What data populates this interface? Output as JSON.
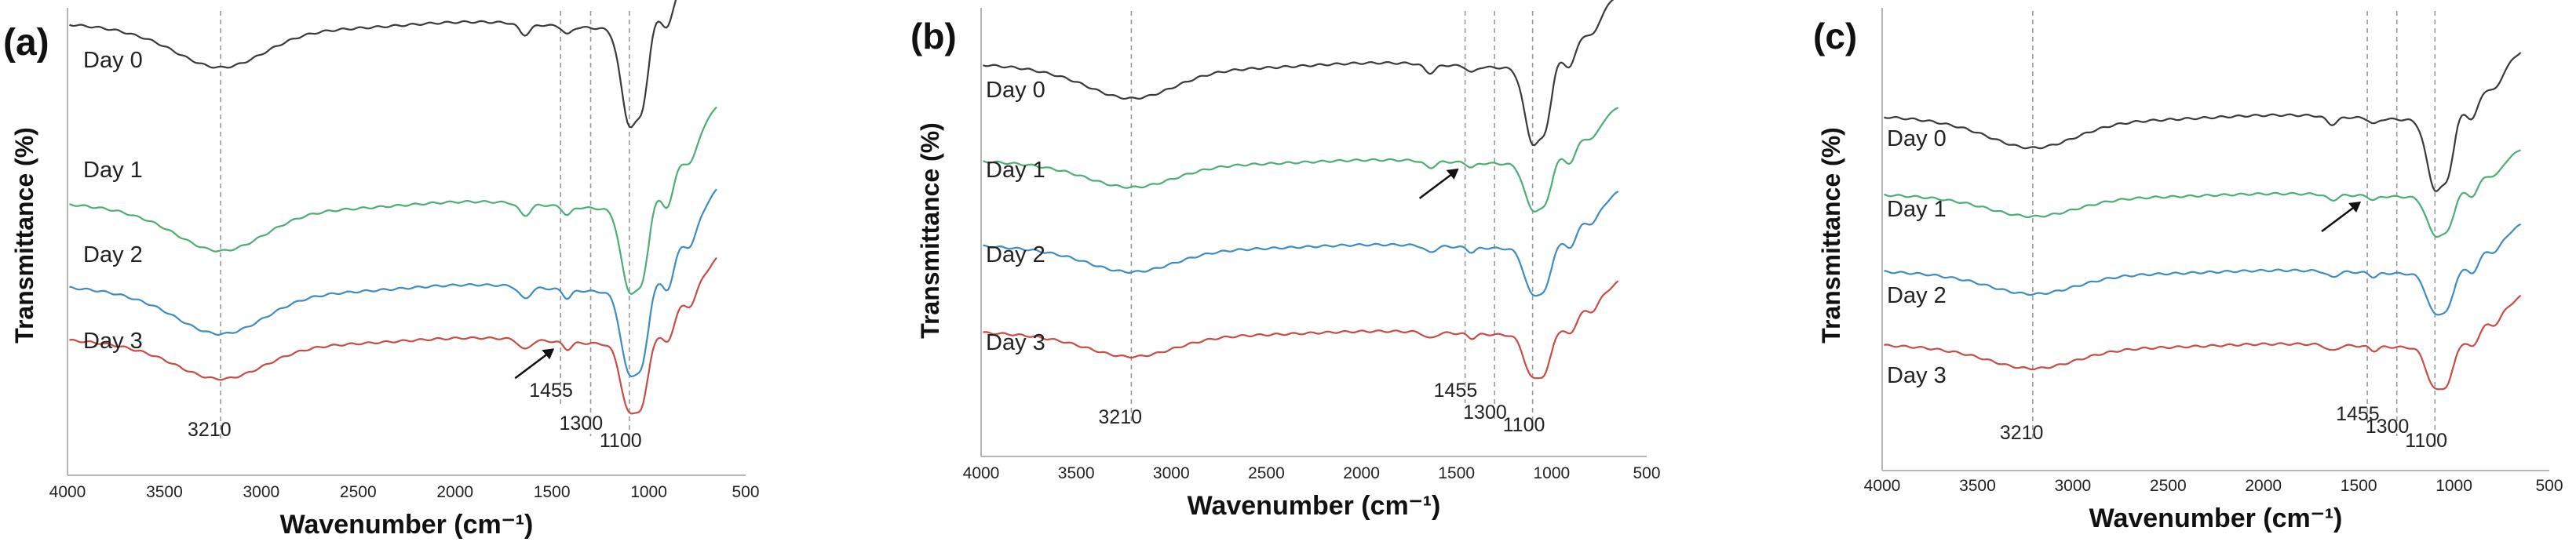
{
  "chart_data": [
    {
      "type": "line",
      "panel_label": "(a)",
      "xlabel": "Wavenumber (cm⁻¹)",
      "ylabel": "Transmittance (%)",
      "xlim": [
        4000,
        500
      ],
      "x_ticks": [
        "4000",
        "3500",
        "3000",
        "2500",
        "2000",
        "1500",
        "1000",
        "500"
      ],
      "reference_lines": [
        {
          "wavenumber": 3210,
          "label": "3210"
        },
        {
          "wavenumber": 1455,
          "label": "1455"
        },
        {
          "wavenumber": 1300,
          "label": "1300"
        },
        {
          "wavenumber": 1100,
          "label": "1100"
        }
      ],
      "arrow_day": "Day 3",
      "series": [
        {
          "name": "Day 0",
          "color": "#3a3a3a"
        },
        {
          "name": "Day 1",
          "color": "#4cae75"
        },
        {
          "name": "Day 2",
          "color": "#3d8cc4"
        },
        {
          "name": "Day 3",
          "color": "#c94b45"
        }
      ]
    },
    {
      "type": "line",
      "panel_label": "(b)",
      "xlabel": "Wavenumber (cm⁻¹)",
      "ylabel": "Transmittance (%)",
      "xlim": [
        4000,
        500
      ],
      "x_ticks": [
        "4000",
        "3500",
        "3000",
        "2500",
        "2000",
        "1500",
        "1000",
        "500"
      ],
      "reference_lines": [
        {
          "wavenumber": 3210,
          "label": "3210"
        },
        {
          "wavenumber": 1455,
          "label": "1455"
        },
        {
          "wavenumber": 1300,
          "label": "1300"
        },
        {
          "wavenumber": 1100,
          "label": "1100"
        }
      ],
      "arrow_day": "Day 1",
      "series": [
        {
          "name": "Day 0",
          "color": "#3a3a3a"
        },
        {
          "name": "Day 1",
          "color": "#4cae75"
        },
        {
          "name": "Day 2",
          "color": "#3d8cc4"
        },
        {
          "name": "Day 3",
          "color": "#c94b45"
        }
      ]
    },
    {
      "type": "line",
      "panel_label": "(c)",
      "xlabel": "Wavenumber (cm⁻¹)",
      "ylabel": "Transmittance (%)",
      "xlim": [
        4000,
        500
      ],
      "x_ticks": [
        "4000",
        "3500",
        "3000",
        "2500",
        "2000",
        "1500",
        "1000",
        "500"
      ],
      "reference_lines": [
        {
          "wavenumber": 3210,
          "label": "3210"
        },
        {
          "wavenumber": 1455,
          "label": "1455"
        },
        {
          "wavenumber": 1300,
          "label": "1300"
        },
        {
          "wavenumber": 1100,
          "label": "1100"
        }
      ],
      "arrow_day": "Day 1",
      "series": [
        {
          "name": "Day 0",
          "color": "#3a3a3a"
        },
        {
          "name": "Day 1",
          "color": "#4cae75"
        },
        {
          "name": "Day 2",
          "color": "#3d8cc4"
        },
        {
          "name": "Day 3",
          "color": "#c94b45"
        }
      ]
    }
  ]
}
